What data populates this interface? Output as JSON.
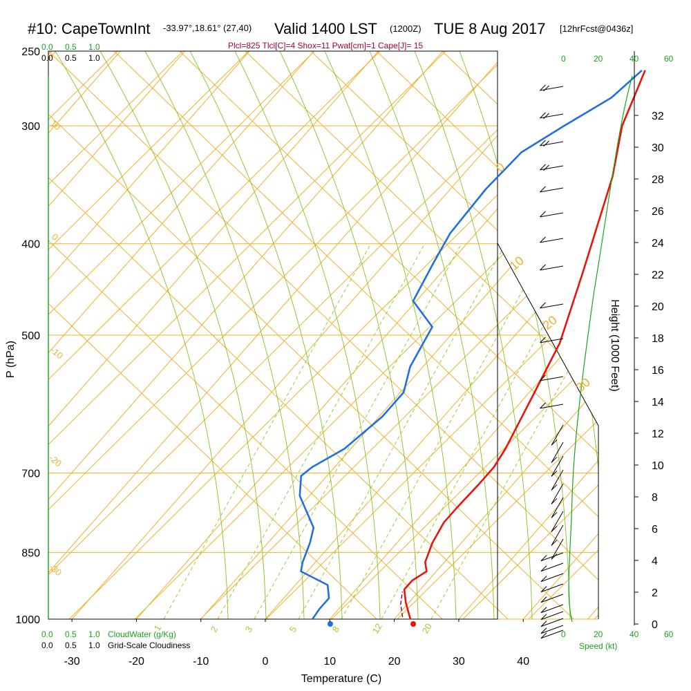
{
  "title": {
    "station": "#10: CapeTownInt",
    "location": "-33.97°,18.61° (27,40)",
    "valid": "Valid 1400 LST",
    "zulu": "(1200Z)",
    "date": "TUE 8 Aug 2017",
    "forecast": "[12hrFcst@0436z]"
  },
  "params_line": "Plcl=825 Tlcl[C]=4 Shox=11 Pwat[cm]=1 Cape[J]= 15",
  "chart_data": {
    "type": "line",
    "title": "Skew-T sounding, Cape Town International",
    "xlabel": "Temperature (C)",
    "ylabel": "P (hPa)",
    "y2label": "Height (1000 Feet)",
    "xlim": [
      -35,
      45
    ],
    "ylim_hpa": [
      1000,
      250
    ],
    "x_ticks": [
      -30,
      -20,
      -10,
      0,
      10,
      20,
      30,
      40
    ],
    "p_ticks": [
      250,
      300,
      400,
      500,
      700,
      850,
      1000
    ],
    "height_ticks": [
      0,
      2,
      4,
      6,
      8,
      10,
      12,
      14,
      16,
      18,
      20,
      22,
      24,
      26,
      28,
      30,
      32
    ],
    "series": [
      {
        "name": "Temperature",
        "color": "#e8140c",
        "points": [
          [
            22.5,
            1000
          ],
          [
            19.5,
            960
          ],
          [
            17.5,
            930
          ],
          [
            17.5,
            910
          ],
          [
            18.5,
            890
          ],
          [
            17.0,
            870
          ],
          [
            15.5,
            830
          ],
          [
            14.5,
            790
          ],
          [
            14.5,
            760
          ],
          [
            14.7,
            720
          ],
          [
            14.7,
            690
          ],
          [
            14.0,
            660
          ],
          [
            11.0,
            580
          ],
          [
            8.0,
            510
          ],
          [
            2.0,
            430
          ],
          [
            -6.5,
            340
          ],
          [
            -12.0,
            300
          ],
          [
            -16.0,
            262
          ]
        ]
      },
      {
        "name": "Dewpoint",
        "color": "#1f6fe0",
        "points": [
          [
            7.3,
            1000
          ],
          [
            7.0,
            975
          ],
          [
            7.0,
            950
          ],
          [
            5.0,
            920
          ],
          [
            -1.0,
            890
          ],
          [
            -2.0,
            870
          ],
          [
            -3.5,
            830
          ],
          [
            -5.0,
            800
          ],
          [
            -11.5,
            740
          ],
          [
            -14.0,
            705
          ],
          [
            -13.5,
            690
          ],
          [
            -11.0,
            660
          ],
          [
            -9.5,
            610
          ],
          [
            -9.5,
            575
          ],
          [
            -12.0,
            540
          ],
          [
            -14.0,
            490
          ],
          [
            -20.5,
            460
          ],
          [
            -22.5,
            420
          ],
          [
            -24.0,
            390
          ],
          [
            -24.5,
            350
          ],
          [
            -24.0,
            320
          ],
          [
            -21.0,
            300
          ],
          [
            -17.5,
            280
          ],
          [
            -16.5,
            262
          ]
        ]
      }
    ],
    "surface_markers": [
      {
        "name": "surface-temperature",
        "temp": 23.0,
        "p": 1000,
        "color": "#e8140c"
      },
      {
        "name": "surface-dewpoint",
        "temp": 10.3,
        "p": 1000,
        "color": "#1f6fe0"
      }
    ],
    "isotherm_labels": [
      "0",
      "10",
      "20",
      "30"
    ],
    "isotherm_labels_left": [
      "-10",
      "-20",
      "-30"
    ],
    "mixing_ratio_labels": [
      "1",
      "2",
      "3",
      "5",
      "8",
      "12",
      "20"
    ],
    "theta_labels": [
      "10",
      "0",
      "-10",
      "-20",
      "-30"
    ],
    "wind_speed_axis": {
      "label": "Speed (kt)",
      "ticks": [
        "0",
        "20",
        "40",
        "60"
      ]
    },
    "cloud_axis": {
      "cloudwater_label": "CloudWater (g/Kg)",
      "cloudiness_label": "Grid-Scale Cloudiness",
      "ticks": [
        "0.0",
        "0.5",
        "1.0"
      ],
      "green_ticks": [
        "0.0",
        "0.5",
        "1.0"
      ]
    }
  }
}
